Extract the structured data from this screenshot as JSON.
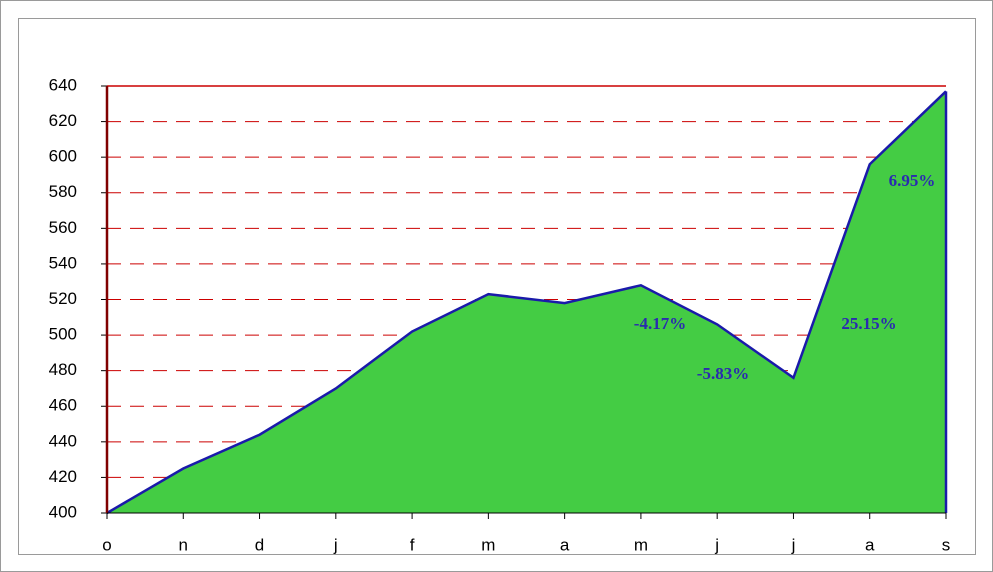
{
  "chart_data": {
    "type": "area",
    "categories": [
      "o",
      "n",
      "d",
      "j",
      "f",
      "m",
      "a",
      "m",
      "j",
      "j",
      "a",
      "s"
    ],
    "values": [
      400,
      425,
      444,
      470,
      502,
      523,
      518,
      528,
      506,
      476,
      596,
      637
    ],
    "color": "#44cc44",
    "line_color": "#1a1aaa",
    "grid_color": "#cc0000",
    "ylim": [
      400,
      640
    ],
    "yticks": [
      400,
      420,
      440,
      460,
      480,
      500,
      520,
      540,
      560,
      580,
      600,
      620,
      640
    ],
    "grid": true,
    "annotations": [
      "-4.17%",
      "-5.83%",
      "25.15%",
      "6.95%"
    ]
  }
}
